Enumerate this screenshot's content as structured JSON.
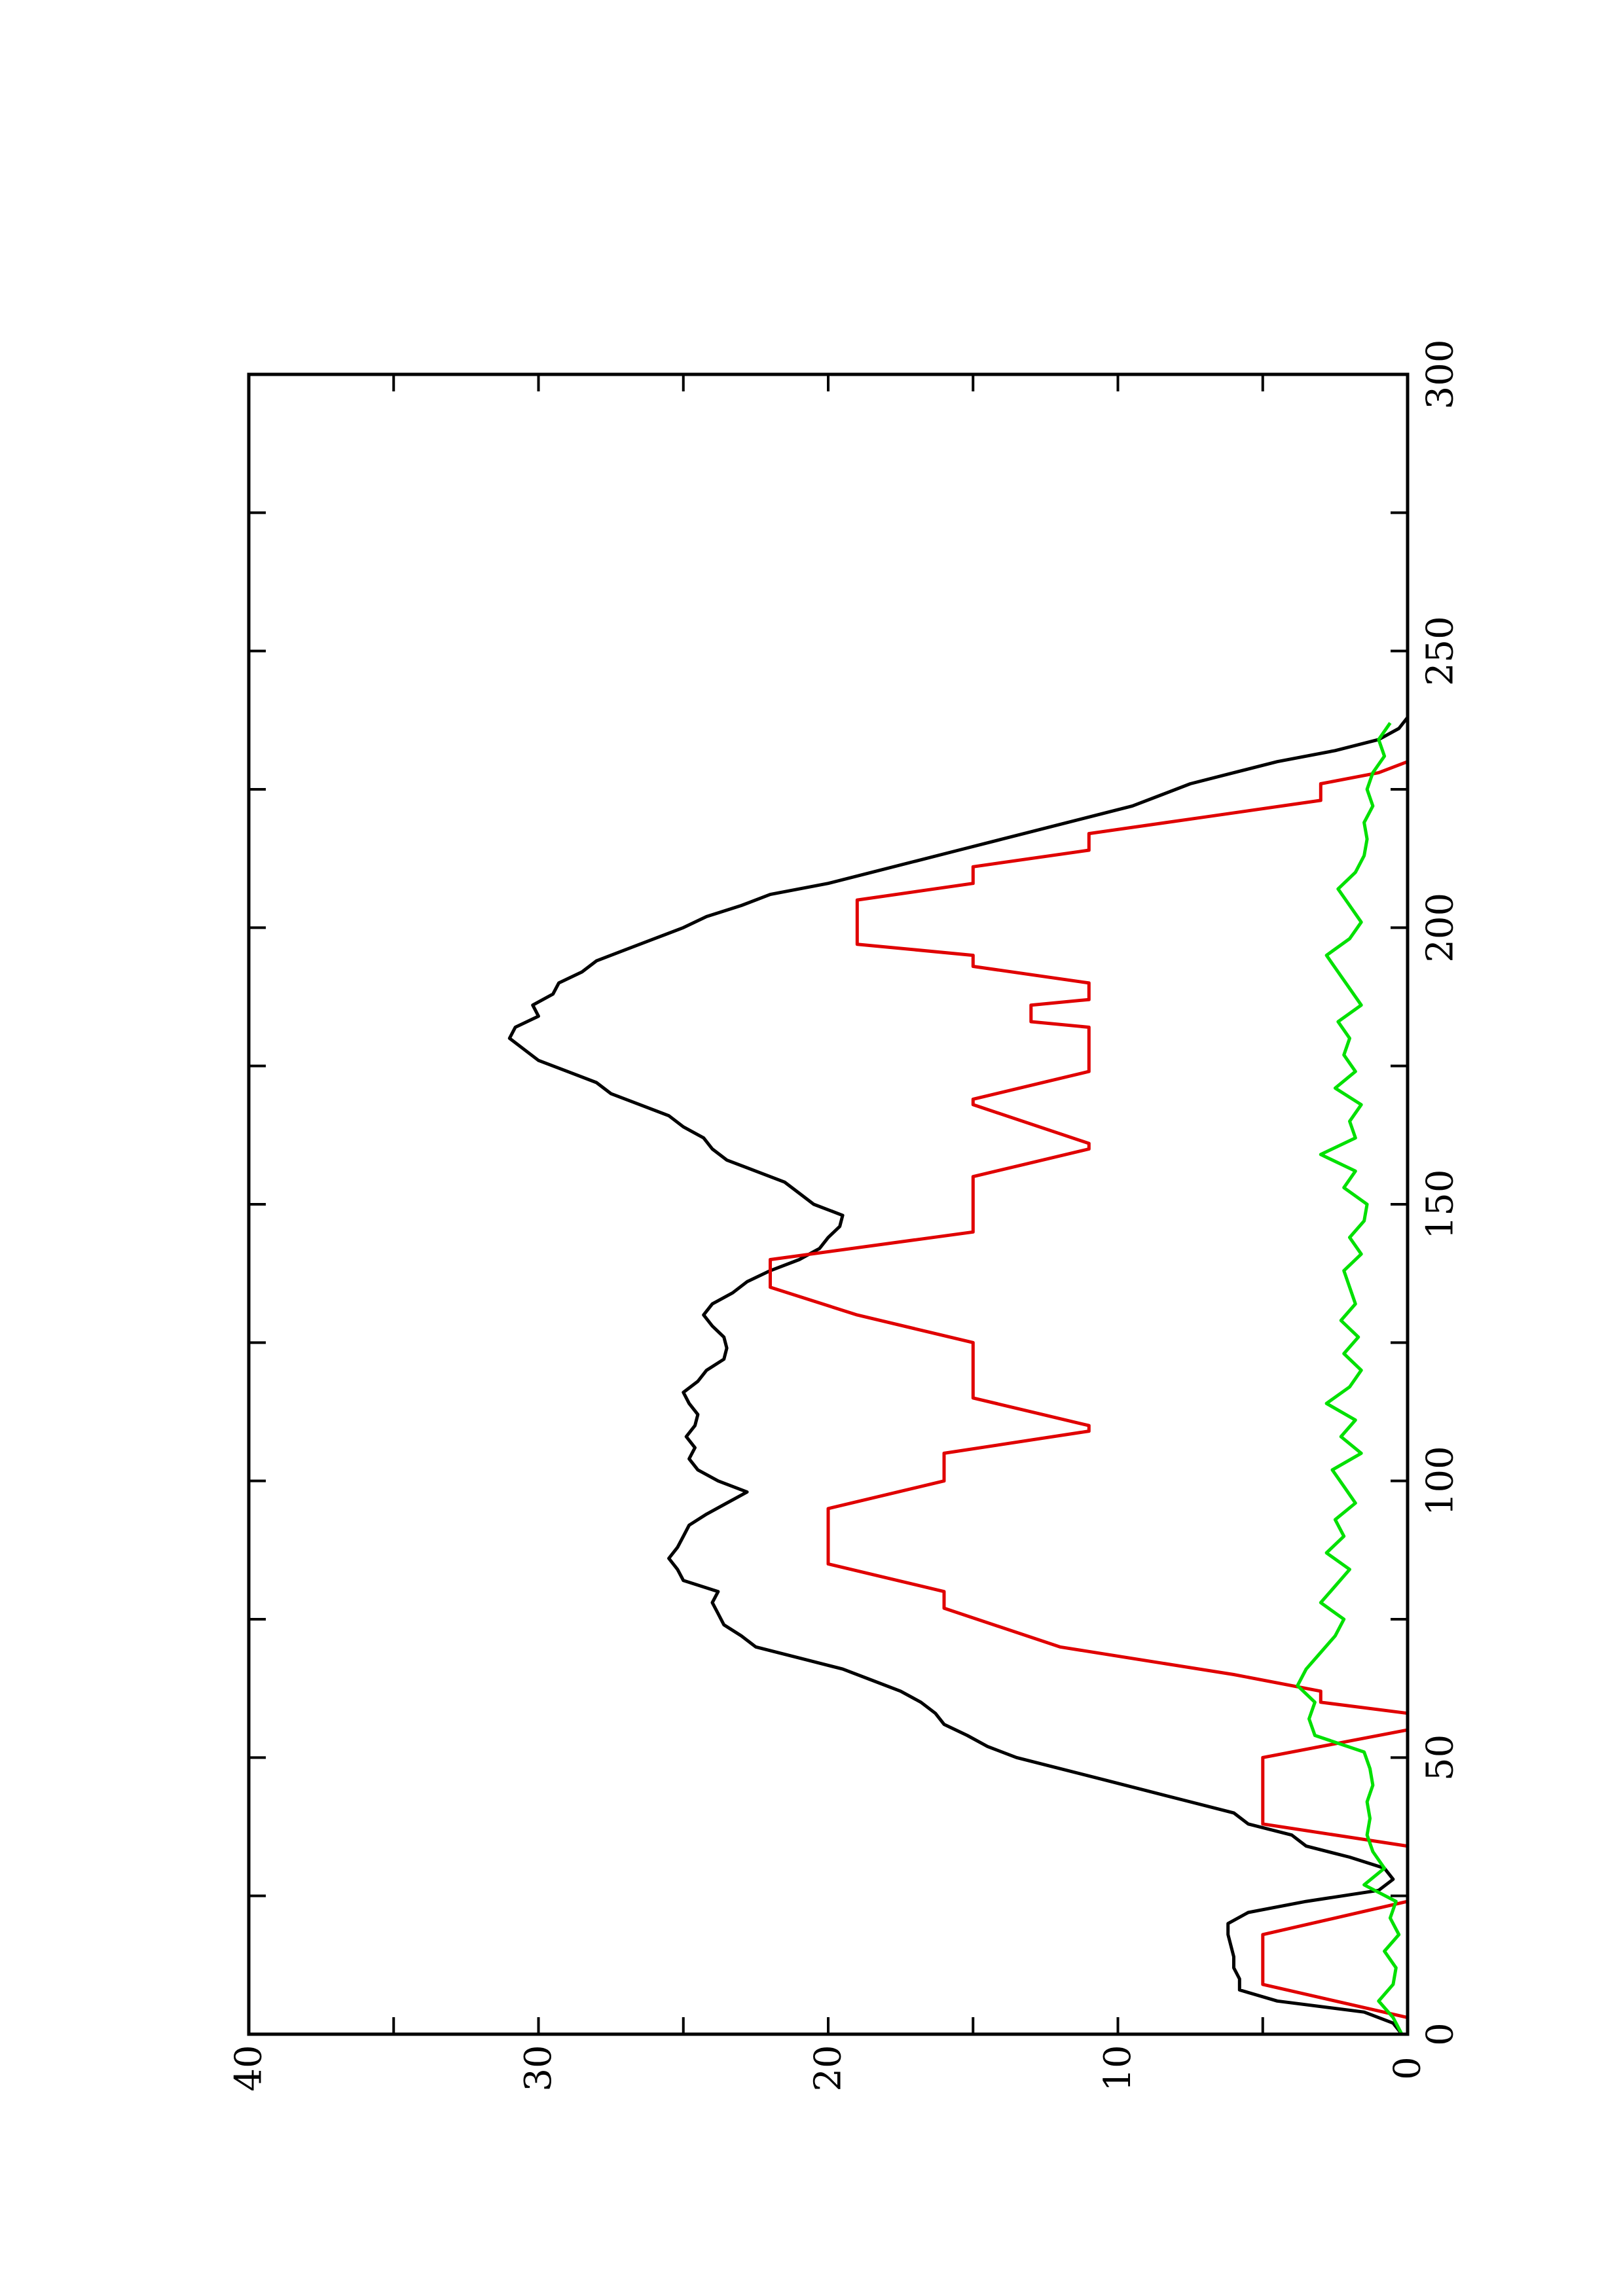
{
  "chart_data": {
    "type": "line",
    "orientation": "rotated-90-ccw",
    "title": "",
    "xlabel": "",
    "ylabel": "",
    "xlim": [
      0,
      300
    ],
    "ylim": [
      0,
      40
    ],
    "x_ticks": [
      0,
      50,
      100,
      150,
      200,
      250,
      300
    ],
    "x_minor_ticks": [
      25,
      75,
      125,
      175,
      225,
      275
    ],
    "y_ticks": [
      0,
      10,
      20,
      30,
      40
    ],
    "y_minor_ticks": [
      5,
      15,
      25,
      35
    ],
    "grid": false,
    "legend": "none",
    "series": [
      {
        "color": "#000000",
        "x": [
          0,
          2,
          4,
          6,
          8,
          10,
          12,
          14,
          16,
          18,
          20,
          22,
          24,
          26,
          28,
          30,
          32,
          34,
          36,
          38,
          40,
          42,
          44,
          46,
          48,
          50,
          52,
          54,
          56,
          58,
          60,
          62,
          64,
          66,
          68,
          70,
          72,
          74,
          76,
          78,
          80,
          82,
          84,
          86,
          88,
          90,
          92,
          94,
          96,
          98,
          100,
          102,
          104,
          106,
          108,
          110,
          112,
          114,
          116,
          118,
          120,
          122,
          124,
          126,
          128,
          130,
          132,
          134,
          136,
          138,
          140,
          142,
          144,
          146,
          148,
          150,
          152,
          154,
          156,
          158,
          160,
          162,
          164,
          166,
          168,
          170,
          172,
          174,
          176,
          178,
          180,
          182,
          184,
          186,
          188,
          190,
          192,
          194,
          196,
          198,
          200,
          202,
          204,
          206,
          208,
          210,
          212,
          214,
          216,
          218,
          220,
          222,
          224,
          226,
          228,
          230,
          232,
          234,
          236,
          238
        ],
        "values": [
          0.2,
          0.5,
          1.5,
          4.5,
          5.8,
          5.8,
          6.0,
          6.0,
          6.1,
          6.2,
          6.2,
          5.5,
          3.5,
          1.0,
          0.5,
          0.8,
          2.0,
          3.5,
          4.0,
          5.5,
          6.0,
          7.5,
          9.0,
          10.5,
          12.0,
          13.5,
          14.5,
          15.2,
          16.0,
          16.3,
          16.8,
          17.5,
          18.5,
          19.5,
          21.0,
          22.5,
          23.0,
          23.6,
          23.8,
          24.0,
          23.8,
          25.0,
          25.2,
          25.5,
          25.2,
          25.0,
          24.8,
          24.2,
          23.5,
          22.8,
          23.8,
          24.5,
          24.8,
          24.6,
          24.9,
          24.6,
          24.5,
          24.8,
          25.0,
          24.5,
          24.2,
          23.6,
          23.5,
          23.6,
          24.0,
          24.3,
          24.0,
          23.3,
          22.8,
          22.0,
          21.0,
          20.3,
          20.0,
          19.6,
          19.5,
          20.5,
          21.0,
          21.5,
          22.5,
          23.5,
          24.0,
          24.3,
          25.0,
          25.5,
          26.5,
          27.5,
          28.0,
          29.0,
          30.0,
          30.5,
          31.0,
          30.8,
          30.0,
          30.2,
          29.5,
          29.3,
          28.5,
          28.0,
          27.0,
          26.0,
          25.0,
          24.2,
          23.0,
          22.0,
          20.0,
          18.5,
          17.0,
          15.5,
          14.0,
          12.5,
          11.0,
          9.5,
          8.5,
          7.5,
          6.0,
          4.5,
          2.5,
          1.0,
          0.3,
          0.0
        ]
      },
      {
        "color": "#e00000",
        "x": [
          0,
          3,
          9,
          18,
          24,
          26,
          28,
          32,
          34,
          38,
          50,
          55,
          57,
          58,
          60,
          62,
          65,
          70,
          77,
          80,
          85,
          90,
          95,
          100,
          105,
          109,
          110,
          115,
          125,
          130,
          135,
          140,
          145,
          150,
          155,
          160,
          161,
          168,
          169,
          174,
          177,
          182,
          183,
          186,
          187,
          188,
          190,
          193,
          195,
          197,
          202,
          205,
          208,
          211,
          214,
          217,
          220,
          223,
          226,
          228,
          230,
          232
        ],
        "values": [
          0,
          0,
          5,
          5,
          0,
          0,
          0,
          0,
          0,
          5,
          5,
          0,
          0,
          0,
          3,
          3,
          6,
          12,
          16,
          16,
          20,
          20,
          20,
          16,
          16,
          11,
          11,
          15,
          15,
          19,
          22,
          22,
          15,
          15,
          15,
          11,
          11,
          15,
          15,
          11,
          11,
          11,
          13,
          13,
          11,
          11,
          11,
          15,
          15,
          19,
          19,
          19,
          15,
          15,
          11,
          11,
          7,
          3,
          3,
          1,
          0,
          0
        ]
      },
      {
        "color": "#00e000",
        "x": [
          0,
          3,
          6,
          9,
          12,
          15,
          18,
          21,
          24,
          27,
          30,
          33,
          36,
          39,
          42,
          45,
          48,
          51,
          54,
          57,
          60,
          63,
          66,
          69,
          72,
          75,
          78,
          81,
          84,
          87,
          90,
          93,
          96,
          99,
          102,
          105,
          108,
          111,
          114,
          117,
          120,
          123,
          126,
          129,
          132,
          135,
          138,
          141,
          144,
          147,
          150,
          153,
          156,
          159,
          162,
          165,
          168,
          171,
          174,
          177,
          180,
          183,
          186,
          189,
          192,
          195,
          198,
          201,
          204,
          207,
          210,
          213,
          216,
          219,
          222,
          225,
          228,
          231,
          234,
          237
        ],
        "values": [
          0.2,
          0.5,
          1.0,
          0.5,
          0.4,
          0.8,
          0.3,
          0.6,
          0.4,
          1.5,
          0.8,
          1.2,
          1.4,
          1.3,
          1.4,
          1.2,
          1.3,
          1.5,
          3.2,
          3.4,
          3.2,
          3.8,
          3.5,
          3.0,
          2.5,
          2.2,
          3.0,
          2.5,
          2.0,
          2.8,
          2.2,
          2.5,
          1.8,
          2.2,
          2.6,
          1.6,
          2.3,
          1.8,
          2.8,
          2.0,
          1.6,
          2.2,
          1.7,
          2.3,
          1.8,
          2.0,
          2.2,
          1.6,
          2.0,
          1.5,
          1.4,
          2.2,
          1.8,
          3.0,
          1.8,
          2.0,
          1.6,
          2.5,
          1.8,
          2.2,
          2.0,
          2.4,
          1.6,
          2.0,
          2.4,
          2.8,
          2.0,
          1.6,
          2.0,
          2.4,
          1.8,
          1.5,
          1.4,
          1.5,
          1.2,
          1.4,
          1.2,
          0.8,
          1.0,
          0.6
        ]
      }
    ]
  }
}
